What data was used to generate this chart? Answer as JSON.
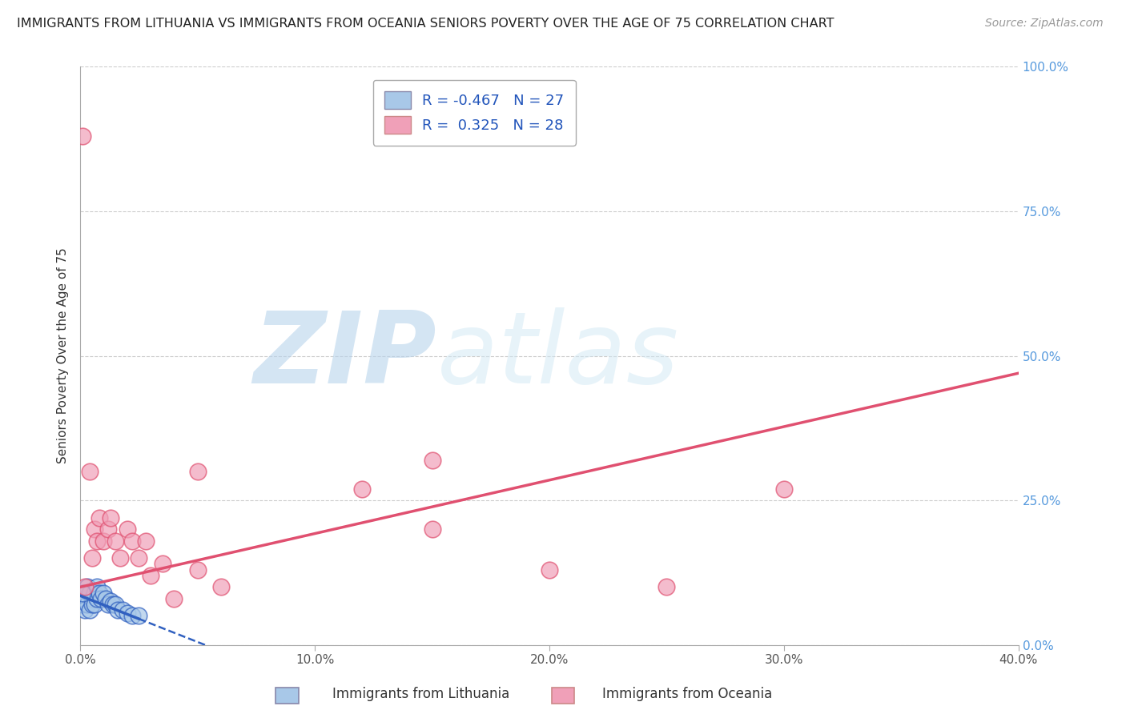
{
  "title": "IMMIGRANTS FROM LITHUANIA VS IMMIGRANTS FROM OCEANIA SENIORS POVERTY OVER THE AGE OF 75 CORRELATION CHART",
  "source": "Source: ZipAtlas.com",
  "xlabel_legend1": "Immigrants from Lithuania",
  "xlabel_legend2": "Immigrants from Oceania",
  "ylabel": "Seniors Poverty Over the Age of 75",
  "r1": -0.467,
  "n1": 27,
  "r2": 0.325,
  "n2": 28,
  "xlim": [
    0.0,
    0.4
  ],
  "ylim": [
    0.0,
    1.0
  ],
  "xticks": [
    0.0,
    0.1,
    0.2,
    0.3,
    0.4
  ],
  "xtick_labels": [
    "0.0%",
    "10.0%",
    "20.0%",
    "30.0%",
    "40.0%"
  ],
  "yticks_right": [
    0.0,
    0.25,
    0.5,
    0.75,
    1.0
  ],
  "ytick_labels_right": [
    "0.0%",
    "25.0%",
    "50.0%",
    "75.0%",
    "100.0%"
  ],
  "color_blue": "#A8C8E8",
  "color_pink": "#F0A0B8",
  "color_blue_line": "#3060C0",
  "color_pink_line": "#E05070",
  "background": "#FFFFFF",
  "grid_color": "#CCCCCC",
  "watermark_zip": "ZIP",
  "watermark_atlas": "atlas",
  "blue_dots_x": [
    0.001,
    0.002,
    0.002,
    0.003,
    0.003,
    0.004,
    0.004,
    0.005,
    0.005,
    0.006,
    0.006,
    0.007,
    0.007,
    0.008,
    0.009,
    0.01,
    0.011,
    0.012,
    0.013,
    0.014,
    0.015,
    0.016,
    0.018,
    0.02,
    0.022,
    0.025,
    0.001
  ],
  "blue_dots_y": [
    0.07,
    0.08,
    0.06,
    0.1,
    0.07,
    0.09,
    0.06,
    0.08,
    0.07,
    0.09,
    0.07,
    0.1,
    0.08,
    0.09,
    0.08,
    0.09,
    0.08,
    0.07,
    0.075,
    0.07,
    0.07,
    0.06,
    0.06,
    0.055,
    0.05,
    0.05,
    0.09
  ],
  "pink_dots_x": [
    0.001,
    0.002,
    0.004,
    0.005,
    0.006,
    0.007,
    0.008,
    0.01,
    0.012,
    0.013,
    0.015,
    0.017,
    0.02,
    0.022,
    0.025,
    0.028,
    0.03,
    0.035,
    0.04,
    0.05,
    0.06,
    0.12,
    0.15,
    0.2,
    0.25,
    0.3,
    0.05,
    0.15
  ],
  "pink_dots_y": [
    0.88,
    0.1,
    0.3,
    0.15,
    0.2,
    0.18,
    0.22,
    0.18,
    0.2,
    0.22,
    0.18,
    0.15,
    0.2,
    0.18,
    0.15,
    0.18,
    0.12,
    0.14,
    0.08,
    0.13,
    0.1,
    0.27,
    0.2,
    0.13,
    0.1,
    0.27,
    0.3,
    0.32
  ]
}
